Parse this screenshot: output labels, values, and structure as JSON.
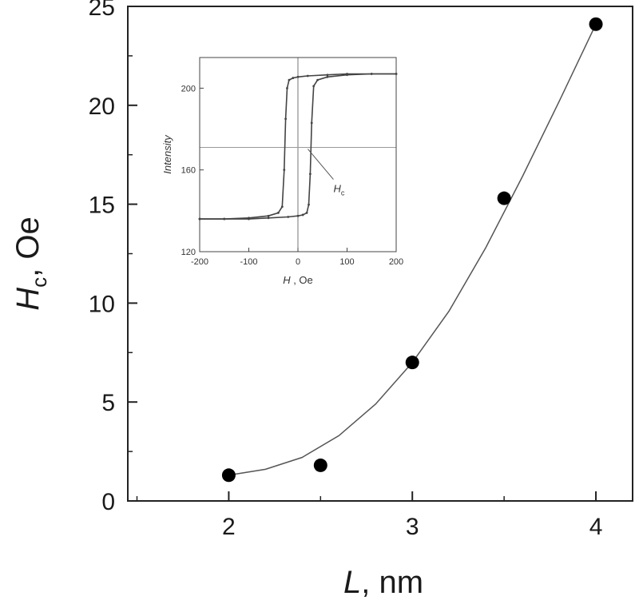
{
  "chart_data": [
    {
      "type": "scatter",
      "title": "",
      "xlabel": "L",
      "xlabel_unit": ", nm",
      "ylabel": "H",
      "ylabel_sub": "c",
      "ylabel_unit": ", Oe",
      "xlim": [
        1.45,
        4.2
      ],
      "ylim": [
        0,
        25
      ],
      "xticks": [
        2,
        3,
        4
      ],
      "yticks": [
        0,
        5,
        10,
        15,
        20,
        25
      ],
      "points": [
        {
          "x": 2.0,
          "y": 1.3
        },
        {
          "x": 2.5,
          "y": 1.8
        },
        {
          "x": 3.0,
          "y": 7.0
        },
        {
          "x": 3.5,
          "y": 15.3
        },
        {
          "x": 4.0,
          "y": 24.1
        }
      ],
      "fit_curve": {
        "x": [
          2.0,
          2.2,
          2.4,
          2.6,
          2.8,
          3.0,
          3.2,
          3.4,
          3.6,
          3.8,
          4.0
        ],
        "y": [
          1.3,
          1.6,
          2.2,
          3.3,
          4.9,
          7.0,
          9.6,
          12.8,
          16.4,
          20.2,
          24.1
        ]
      },
      "grid": false,
      "marker_color": "#000000",
      "line_color": "#555555"
    },
    {
      "type": "line",
      "title": "",
      "xlabel": "H",
      "xlabel_unit": " , Oe",
      "ylabel": "Intensity",
      "xlim": [
        -200,
        200
      ],
      "ylim": [
        120,
        215
      ],
      "xticks": [
        -200,
        -100,
        0,
        100,
        200
      ],
      "yticks": [
        120,
        160,
        200
      ],
      "reference_lines": {
        "x": 0,
        "y": 171
      },
      "annotation": {
        "text": "H",
        "sub": "c",
        "at_x": 30,
        "at_y": 171
      },
      "series": [
        {
          "x": [
            -200,
            -150,
            -100,
            -60,
            -40,
            -32,
            -28,
            -25,
            -22,
            -18,
            -10,
            0,
            20,
            60,
            100,
            150,
            200
          ],
          "y": [
            136,
            136,
            136.5,
            137.5,
            139,
            142,
            160,
            185,
            200,
            204,
            205,
            205.5,
            206,
            206.5,
            207,
            207,
            207
          ]
        },
        {
          "x": [
            200,
            150,
            100,
            60,
            40,
            32,
            28,
            25,
            22,
            18,
            10,
            0,
            -20,
            -60,
            -100,
            -150,
            -200
          ],
          "y": [
            207,
            207,
            206.5,
            205.5,
            204,
            201,
            183,
            158,
            143,
            139,
            138,
            137.5,
            137,
            136.5,
            136,
            136,
            136
          ]
        }
      ],
      "line_color": "#444444"
    }
  ]
}
